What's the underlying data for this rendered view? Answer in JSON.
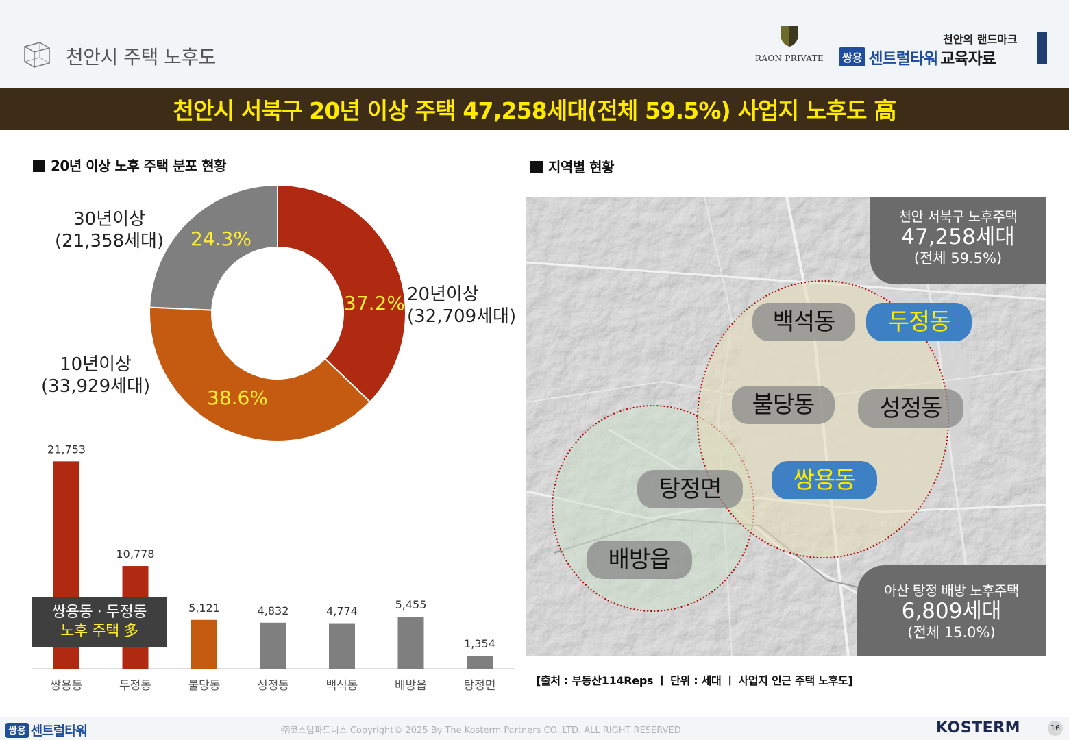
{
  "header": {
    "title": "천안시 주택 노후도",
    "raon_logo_text": "RAON PRIVATE",
    "brand_small": "천안의 랜드마크",
    "brand_badge": "쌍용",
    "brand_name": "센트럴타워",
    "brand_suffix": "교육자료"
  },
  "banner": {
    "text": "천안시 서북구 20년 이상 주택 47,258세대(전체 59.5%) 사업지 노후도 高"
  },
  "left_section": {
    "title": "20년 이상 노후 주택 분포 현황",
    "donut_labels": [
      {
        "line1": "20년이상",
        "line2": "(32,709세대)"
      },
      {
        "line1": "10년이상",
        "line2": "(33,929세대)"
      },
      {
        "line1": "30년이상",
        "line2": "(21,358세대)"
      }
    ],
    "callout": {
      "line1": "쌍용동 · 두정동",
      "line2": "노후 주택 多"
    }
  },
  "right_section": {
    "title": "지역별 현황",
    "top_box": {
      "title": "천안 서북구 노후주택",
      "value": "47,258세대",
      "sub": "(전체 59.5%)"
    },
    "bottom_box": {
      "title": "아산 탕정 배방 노후주택",
      "value": "6,809세대",
      "sub": "(전체 15.0%)"
    },
    "areas": {
      "baekseok": "백석동",
      "dujeong": "두정동",
      "buldang": "불당동",
      "seongjeong": "성정동",
      "ssangyong": "쌍용동",
      "tangjeong": "탕정면",
      "baebang": "배방읍"
    },
    "source": "[출처 : 부동산114Reps ㅣ 단위 : 세대 ㅣ 사업지 인근 주택 노후도]"
  },
  "footer": {
    "badge": "쌍용",
    "brand": "센트럴타워",
    "copyright": "㈜코스텀파드니스 Copyright© 2025 By The Kosterm Partners CO.,LTD. ALL RIGHT RESERVED",
    "kosterm": "KOSTERM",
    "page": "16"
  },
  "chart_data": [
    {
      "type": "pie",
      "variant": "donut",
      "labels": [
        "20년이상",
        "10년이상",
        "30년이상"
      ],
      "values": [
        32709,
        33929,
        21358
      ],
      "percent_labels": [
        "37.2%",
        "38.6%",
        "24.3%"
      ],
      "colors": [
        "#b02a12",
        "#c55a11",
        "#7f7f7f"
      ]
    },
    {
      "type": "bar",
      "categories": [
        "쌍용동",
        "두정동",
        "불당동",
        "성정동",
        "백석동",
        "배방읍",
        "탕정면"
      ],
      "values": [
        21753,
        10778,
        5121,
        4832,
        4774,
        5455,
        1354
      ],
      "value_labels": [
        "21,753",
        "10,778",
        "5,121",
        "4,832",
        "4,774",
        "5,455",
        "1,354"
      ],
      "colors": [
        "#b02a12",
        "#b02a12",
        "#c55a11",
        "#7f7f7f",
        "#7f7f7f",
        "#7f7f7f",
        "#7f7f7f"
      ],
      "ylim": [
        0,
        23000
      ],
      "grid": false
    }
  ]
}
